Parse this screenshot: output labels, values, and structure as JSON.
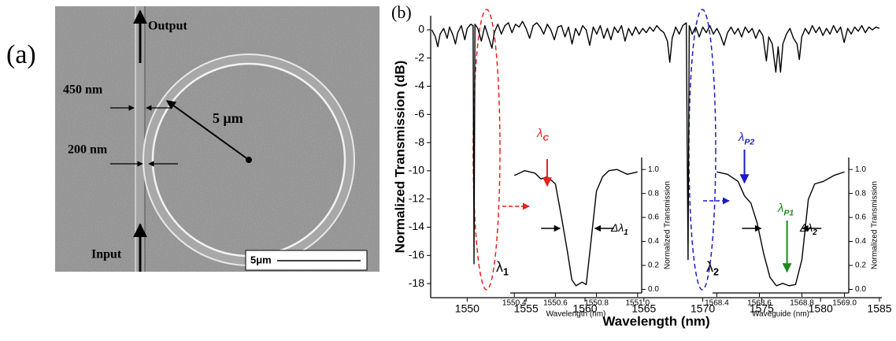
{
  "panel_labels": [
    "(a)",
    "(b)"
  ],
  "sem_image": {
    "output": "Output",
    "input": "Input",
    "width": "450 nm",
    "gap": "200 nm",
    "radius": "5 μm",
    "scale_bar": "5μm"
  },
  "chart_data": [
    {
      "type": "line",
      "x_label": "Wavelength (nm)",
      "y_label": "Normalized Transmission (dB)",
      "xlim": [
        1546.9,
        1585.2
      ],
      "ylim": [
        -19,
        1
      ],
      "xticks": [
        1550,
        1555,
        1560,
        1565,
        1570,
        1575,
        1580,
        1585
      ],
      "yticks": [
        0,
        -2,
        -4,
        -6,
        -8,
        -10,
        -12,
        -14,
        -16,
        -18
      ],
      "series": [
        {
          "color": "#000000",
          "x": [
            1547.0,
            1547.3,
            1547.5,
            1547.7,
            1548.0,
            1548.3,
            1548.5,
            1548.8,
            1549.0,
            1549.2,
            1549.5,
            1549.8,
            1550.0,
            1550.3,
            1550.5,
            1550.58,
            1550.66,
            1550.9,
            1551.2,
            1551.5,
            1551.8,
            1552.1,
            1552.3,
            1552.6,
            1552.9,
            1553.2,
            1553.5,
            1553.8,
            1554.1,
            1554.4,
            1554.7,
            1555.0,
            1555.3,
            1555.6,
            1555.9,
            1556.2,
            1556.5,
            1556.8,
            1557.1,
            1557.4,
            1557.7,
            1558.0,
            1558.3,
            1558.6,
            1558.9,
            1559.2,
            1559.5,
            1559.8,
            1560.1,
            1560.4,
            1560.7,
            1561.0,
            1561.3,
            1561.6,
            1561.9,
            1562.2,
            1562.5,
            1562.8,
            1563.1,
            1563.4,
            1563.7,
            1564.0,
            1564.3,
            1564.6,
            1564.9,
            1565.2,
            1565.5,
            1565.8,
            1566.1,
            1566.4,
            1566.7,
            1567.0,
            1567.2,
            1567.4,
            1567.7,
            1568.0,
            1568.3,
            1568.6,
            1568.75,
            1568.85,
            1569.1,
            1569.4,
            1569.7,
            1570.0,
            1570.3,
            1570.6,
            1570.9,
            1571.2,
            1571.5,
            1571.8,
            1572.1,
            1572.4,
            1572.7,
            1573.0,
            1573.3,
            1573.6,
            1573.9,
            1574.2,
            1574.5,
            1574.8,
            1575.1,
            1575.4,
            1575.6,
            1575.9,
            1576.2,
            1576.4,
            1576.6,
            1576.8,
            1577.1,
            1577.4,
            1577.7,
            1578.0,
            1578.2,
            1578.4,
            1578.7,
            1579.0,
            1579.3,
            1579.6,
            1579.9,
            1580.2,
            1580.5,
            1580.8,
            1581.1,
            1581.4,
            1581.7,
            1582.0,
            1582.3,
            1582.6,
            1582.9,
            1583.2,
            1583.5,
            1583.8,
            1584.1,
            1584.4,
            1584.7,
            1585.0
          ],
          "values": [
            0.0,
            -0.5,
            -1.2,
            -0.3,
            0.1,
            -0.6,
            0.2,
            -0.4,
            -1.0,
            -0.2,
            0.3,
            -0.7,
            0.1,
            0.4,
            0.3,
            -16.6,
            0.4,
            0.1,
            -0.8,
            0.3,
            -0.5,
            -1.3,
            -0.2,
            0.4,
            -0.3,
            0.3,
            0.5,
            -0.2,
            0.4,
            0.2,
            0.6,
            0.1,
            -0.6,
            0.3,
            0.5,
            0.2,
            -0.3,
            0.4,
            0.0,
            -0.7,
            0.2,
            0.3,
            -0.5,
            0.2,
            -1.0,
            0.1,
            -0.4,
            0.3,
            0.0,
            -1.1,
            0.2,
            -0.3,
            0.3,
            -0.6,
            0.1,
            -0.7,
            0.2,
            -0.2,
            0.3,
            -0.8,
            0.1,
            -0.4,
            0.2,
            -0.3,
            0.1,
            -0.2,
            0.2,
            -0.1,
            0.3,
            0.0,
            -0.2,
            -0.8,
            -2.3,
            -0.6,
            0.2,
            -0.3,
            0.3,
            0.5,
            -16.3,
            0.3,
            -0.3,
            0.2,
            -0.5,
            0.2,
            -0.2,
            0.3,
            -0.3,
            0.1,
            -0.4,
            -1.1,
            -0.2,
            0.2,
            -0.3,
            0.1,
            -0.5,
            0.2,
            -0.2,
            0.1,
            -0.6,
            0.0,
            -0.4,
            -2.2,
            -0.5,
            -1.0,
            -3.0,
            -1.2,
            -3.0,
            -1.0,
            -0.3,
            0.1,
            -0.6,
            -1.0,
            -2.1,
            -0.5,
            0.1,
            -0.3,
            0.3,
            -0.2,
            0.2,
            -0.4,
            0.1,
            -0.3,
            0.3,
            -0.2,
            0.2,
            -0.9,
            0.1,
            -0.3,
            0.2,
            -0.1,
            0.3,
            -0.2,
            0.2,
            0.0,
            0.2,
            0.1
          ]
        }
      ],
      "annotations": [
        {
          "text": "λ",
          "sub": "1",
          "color": "#000000"
        },
        {
          "text": "λ",
          "sub": "2",
          "color": "#000000"
        }
      ]
    },
    {
      "type": "line",
      "x_label": "Wavelength (nm)",
      "y_label": "Normalized Transmission",
      "xlim": [
        1550.38,
        1551.02
      ],
      "ylim": [
        -0.03,
        1.1
      ],
      "xticks": [
        1550.4,
        1550.6,
        1550.8,
        {
          "value": 1551,
          "label": "1551.0"
        }
      ],
      "yticks": [
        {
          "value": 0,
          "label": "0.0"
        },
        0.2,
        0.4,
        0.6,
        0.8,
        {
          "value": 1,
          "label": "1.0"
        }
      ],
      "series": [
        {
          "color": "#000000",
          "x": [
            1550.4,
            1550.45,
            1550.5,
            1550.53,
            1550.56,
            1550.6,
            1550.63,
            1550.66,
            1550.68,
            1550.7,
            1550.73,
            1550.75,
            1550.77,
            1550.8,
            1550.83,
            1550.86,
            1550.9,
            1550.95,
            1551.0
          ],
          "values": [
            0.95,
            0.99,
            0.97,
            0.92,
            0.94,
            0.88,
            0.6,
            0.3,
            0.08,
            0.03,
            0.06,
            0.04,
            0.35,
            0.82,
            0.94,
            0.99,
            1.0,
            0.96,
            0.98
          ]
        }
      ],
      "annotations": [
        {
          "text": "λ",
          "sub": "C",
          "color": "#e8221c"
        },
        {
          "text": "Δλ",
          "sub": "1",
          "color": "#000000"
        }
      ]
    },
    {
      "type": "line",
      "x_label": "Waveguide (nm)",
      "y_label": "Normalized Transmission",
      "xlim": [
        1568.38,
        1569.02
      ],
      "ylim": [
        -0.03,
        1.1
      ],
      "xticks": [
        1568.4,
        1568.6,
        1568.8,
        {
          "value": 1569,
          "label": "1569.0"
        }
      ],
      "yticks": [
        {
          "value": 0,
          "label": "0.0"
        },
        0.2,
        0.4,
        0.6,
        0.8,
        {
          "value": 1,
          "label": "1.0"
        }
      ],
      "series": [
        {
          "color": "#000000",
          "x": [
            1568.4,
            1568.45,
            1568.5,
            1568.53,
            1568.56,
            1568.59,
            1568.62,
            1568.65,
            1568.68,
            1568.71,
            1568.74,
            1568.77,
            1568.8,
            1568.83,
            1568.86,
            1568.9,
            1568.95,
            1569.0
          ],
          "values": [
            0.98,
            0.96,
            0.9,
            0.78,
            0.72,
            0.55,
            0.3,
            0.1,
            0.03,
            0.05,
            0.03,
            0.04,
            0.25,
            0.75,
            0.88,
            0.9,
            0.95,
            0.98
          ]
        }
      ],
      "annotations": [
        {
          "text": "λ",
          "sub": "P2",
          "color": "#1a1acc"
        },
        {
          "text": "λ",
          "sub": "P1",
          "color": "#1a8a1a"
        },
        {
          "text": "Δλ",
          "sub": "2",
          "color": "#000000"
        }
      ]
    }
  ]
}
